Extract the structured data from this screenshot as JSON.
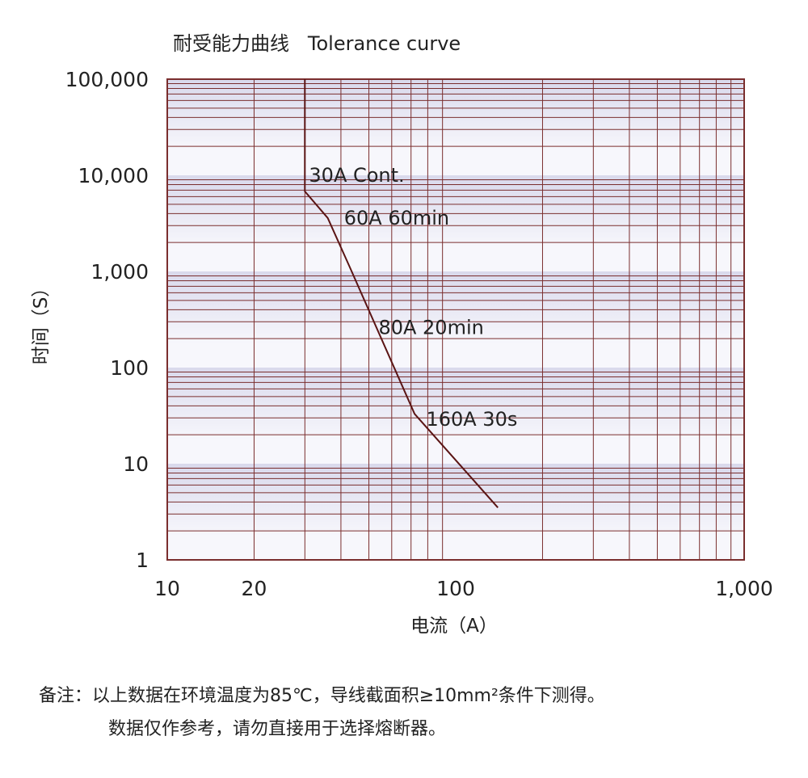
{
  "chart_data": {
    "type": "line",
    "title": "耐受能力曲线   Tolerance curve",
    "xlabel": "电流（A）",
    "ylabel": "时间（S）",
    "x_scale": "log",
    "y_scale": "log",
    "xlim": [
      10,
      1000
    ],
    "ylim": [
      1,
      100000
    ],
    "x_ticks": [
      {
        "value": 10,
        "label": "10"
      },
      {
        "value": 20,
        "label": "20"
      },
      {
        "value": 100,
        "label": "100"
      },
      {
        "value": 1000,
        "label": "1,000"
      }
    ],
    "y_ticks": [
      {
        "value": 1,
        "label": "1"
      },
      {
        "value": 10,
        "label": "10"
      },
      {
        "value": 100,
        "label": "100"
      },
      {
        "value": 1000,
        "label": "1,000"
      },
      {
        "value": 10000,
        "label": "10,000"
      },
      {
        "value": 100000,
        "label": "100,000"
      }
    ],
    "grid": true,
    "series": [
      {
        "points": [
          {
            "x": 30,
            "y": 100000
          },
          {
            "x": 30,
            "y": 6800
          },
          {
            "x": 36,
            "y": 3600
          },
          {
            "x": 43,
            "y": 1100
          },
          {
            "x": 72,
            "y": 33
          },
          {
            "x": 140,
            "y": 3.5
          }
        ]
      }
    ],
    "annotations": [
      {
        "text": "30A Cont.",
        "x": 31,
        "y": 10000
      },
      {
        "text": "60A 60min",
        "x": 41,
        "y": 3600
      },
      {
        "text": "80A 20min",
        "x": 54,
        "y": 260
      },
      {
        "text": "160A 30s",
        "x": 79,
        "y": 29
      }
    ],
    "colors": {
      "grid": "#7a2e2e",
      "curve": "#5a1414",
      "band": "#d9d9ec",
      "band_light": "#f7f7fc"
    }
  },
  "notes": {
    "line1": "备注：以上数据在环境温度为85℃，导线截面积≥10mm²条件下测得。",
    "line2": "数据仅作参考，请勿直接用于选择熔断器。"
  }
}
